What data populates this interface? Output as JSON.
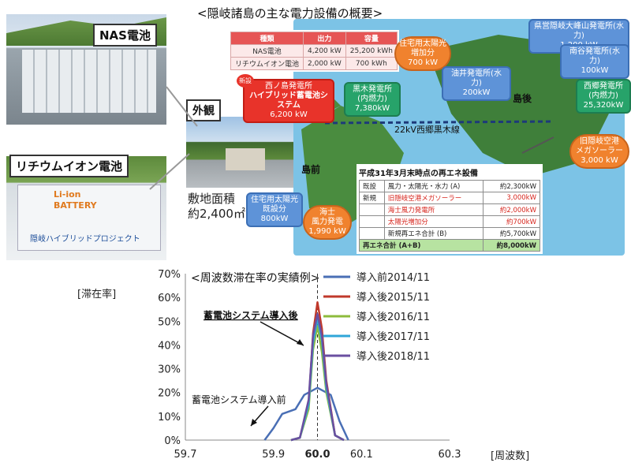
{
  "title": "<隠岐諸島の主な電力設備の概要>",
  "photos": {
    "nas_label": "NAS電池",
    "li_label": "リチウムイオン電池",
    "gaikan_label": "外観",
    "area_label": "敷地面積",
    "area_value": "約2,400㎡",
    "li_panel_text_1": "Li-ion",
    "li_panel_text_2": "BATTERY",
    "li_panel_text_3": "隠岐ハイブリッドプロジェクト"
  },
  "spec_table": {
    "headers": [
      "種類",
      "出力",
      "容量"
    ],
    "rows": [
      [
        "NAS電池",
        "4,200 kW",
        "25,200 kWh"
      ],
      [
        "リチウムイオン電池",
        "2,000 kW",
        "700 kWh"
      ]
    ]
  },
  "map": {
    "new_badge": "新設",
    "label_dogo": "島後",
    "label_dozen": "島前",
    "line_label": "22kV西郷黒木線",
    "callouts": {
      "hybrid": [
        "西ノ島発電所",
        "ハイブリッド蓄電池システム",
        "6,200 kW"
      ],
      "solar_added": [
        "住宅用太陽光",
        "増加分",
        "700 kW"
      ],
      "kuroki": [
        "黒木発電所",
        "(内燃力)",
        "7,380kW"
      ],
      "yuika": [
        "油井発電所(水力)",
        "200kW"
      ],
      "omine": [
        "県営隠岐大峰山発電所(水力)",
        "1,200 kW"
      ],
      "nanko": [
        "南谷発電所(水力)",
        "100kW"
      ],
      "saigo": [
        "西郷発電所",
        "(内燃力)",
        "25,320kW"
      ],
      "airport": [
        "旧隠岐空港",
        "メガソーラー",
        "3,000 kW"
      ],
      "solar_existing": [
        "住宅用太陽光",
        "既設分",
        "800kW"
      ],
      "ama_wind": [
        "海士",
        "風力発電",
        "1,990 kW"
      ]
    }
  },
  "re_table": {
    "title": "平成31年3月末時点の再エネ設備",
    "rows": [
      {
        "cat": "既設",
        "name": "風力・太陽光・水力 (A)",
        "value": "約2,300kW",
        "red": false
      },
      {
        "cat": "新規",
        "name": "旧隠岐空港メガソーラー",
        "value": "3,000kW",
        "red": true
      },
      {
        "cat": "",
        "name": "海士風力発電所",
        "value": "約2,000kW",
        "red": true
      },
      {
        "cat": "",
        "name": "太陽光増加分",
        "value": "約700kW",
        "red": true
      },
      {
        "cat": "",
        "name": "新規再エネ合計 (B)",
        "value": "約5,700kW",
        "red": false
      }
    ],
    "total_name": "再エネ合計 (A+B)",
    "total_value": "約8,000kW"
  },
  "chart_data": {
    "type": "line",
    "title": "<周波数滞在率の実績例>",
    "ylabel": "[滞在率]",
    "xlabel": "[周波数]",
    "xlim": [
      59.7,
      60.3
    ],
    "ylim": [
      0,
      70
    ],
    "xticks": [
      "59.7",
      "59.9",
      "60.0",
      "60.1",
      "60.3"
    ],
    "xtick_values": [
      59.7,
      59.9,
      60.0,
      60.1,
      60.3
    ],
    "yticks": [
      "0%",
      "10%",
      "20%",
      "30%",
      "40%",
      "50%",
      "60%",
      "70%"
    ],
    "ytick_values": [
      0,
      10,
      20,
      30,
      40,
      50,
      60,
      70
    ],
    "annotation_after": "蓄電池システム導入後",
    "annotation_before": "蓄電池システム導入前",
    "series": [
      {
        "name": "導入前2014/11",
        "color": "#4a6fb5",
        "x": [
          59.88,
          59.9,
          59.92,
          59.95,
          59.97,
          60.0,
          60.03,
          60.05,
          60.07
        ],
        "y": [
          0,
          5,
          11,
          13,
          19,
          22,
          19,
          8,
          0
        ]
      },
      {
        "name": "導入後2015/11",
        "color": "#c0392b",
        "x": [
          59.94,
          59.96,
          59.98,
          59.99,
          60.0,
          60.01,
          60.02,
          60.04,
          60.06
        ],
        "y": [
          0,
          1,
          15,
          45,
          58,
          47,
          25,
          2,
          0
        ]
      },
      {
        "name": "導入後2016/11",
        "color": "#8dbb3c",
        "x": [
          59.94,
          59.96,
          59.98,
          59.99,
          60.0,
          60.01,
          60.02,
          60.04,
          60.06
        ],
        "y": [
          0,
          1,
          13,
          38,
          48,
          37,
          20,
          2,
          0
        ]
      },
      {
        "name": "導入後2017/11",
        "color": "#2fa6d8",
        "x": [
          59.94,
          59.96,
          59.98,
          59.99,
          60.0,
          60.01,
          60.02,
          60.04,
          60.06
        ],
        "y": [
          0,
          1,
          15,
          41,
          51,
          42,
          22,
          2,
          0
        ]
      },
      {
        "name": "導入後2018/11",
        "color": "#6a4fa0",
        "x": [
          59.94,
          59.96,
          59.98,
          59.99,
          60.0,
          60.01,
          60.02,
          60.04,
          60.06
        ],
        "y": [
          0,
          1,
          17,
          44,
          53,
          44,
          24,
          2,
          0
        ]
      }
    ]
  }
}
